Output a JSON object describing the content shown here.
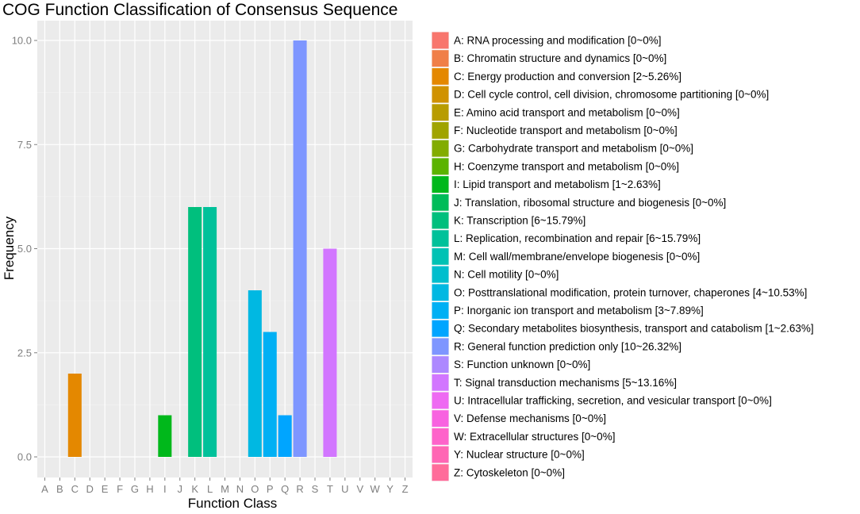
{
  "chart_data": {
    "type": "bar",
    "title": "COG Function Classification of Consensus Sequence",
    "xlabel": "Function Class",
    "ylabel": "Frequency",
    "ylim": [
      0,
      10.5
    ],
    "yticks": [
      0.0,
      2.5,
      5.0,
      7.5,
      10.0
    ],
    "ytick_labels": [
      "0.0",
      "2.5",
      "5.0",
      "7.5",
      "10.0"
    ],
    "grid": true,
    "legend_position": "right",
    "categories": [
      "A",
      "B",
      "C",
      "D",
      "E",
      "F",
      "G",
      "H",
      "I",
      "J",
      "K",
      "L",
      "M",
      "N",
      "O",
      "P",
      "Q",
      "R",
      "S",
      "T",
      "U",
      "V",
      "W",
      "Y",
      "Z"
    ],
    "values": [
      0,
      0,
      2,
      0,
      0,
      0,
      0,
      0,
      1,
      0,
      6,
      6,
      0,
      0,
      4,
      3,
      1,
      10,
      0,
      5,
      0,
      0,
      0,
      0,
      0
    ],
    "colors": [
      "#F8766D",
      "#F07F48",
      "#E48800",
      "#D09200",
      "#B89C00",
      "#A0A400",
      "#82AC00",
      "#5BB300",
      "#00B81B",
      "#00BC59",
      "#00BF7D",
      "#00C19A",
      "#00C2B4",
      "#00BECD",
      "#00B8E2",
      "#00B0F4",
      "#00A5FF",
      "#7E96FF",
      "#AD88FF",
      "#D276FF",
      "#EE6AF2",
      "#F862E0",
      "#FE63CA",
      "#FF66B4",
      "#FF6C9A"
    ],
    "legend": [
      "A: RNA processing and modification [0~0%]",
      "B: Chromatin structure and dynamics [0~0%]",
      "C: Energy production and conversion [2~5.26%]",
      "D: Cell cycle control, cell division, chromosome partitioning [0~0%]",
      "E: Amino acid transport and metabolism [0~0%]",
      "F: Nucleotide transport and metabolism [0~0%]",
      "G: Carbohydrate transport and metabolism [0~0%]",
      "H: Coenzyme transport and metabolism [0~0%]",
      "I: Lipid transport and metabolism [1~2.63%]",
      "J: Translation, ribosomal structure and biogenesis [0~0%]",
      "K: Transcription [6~15.79%]",
      "L: Replication, recombination and repair [6~15.79%]",
      "M: Cell wall/membrane/envelope biogenesis [0~0%]",
      "N: Cell motility [0~0%]",
      "O: Posttranslational modification, protein turnover, chaperones [4~10.53%]",
      "P: Inorganic ion transport and metabolism [3~7.89%]",
      "Q: Secondary metabolites biosynthesis, transport and catabolism [1~2.63%]",
      "R: General function prediction only [10~26.32%]",
      "S: Function unknown [0~0%]",
      "T: Signal transduction mechanisms [5~13.16%]",
      "U: Intracellular trafficking, secretion, and vesicular transport [0~0%]",
      "V: Defense mechanisms [0~0%]",
      "W: Extracellular structures [0~0%]",
      "Y: Nuclear structure [0~0%]",
      "Z: Cytoskeleton [0~0%]"
    ]
  }
}
